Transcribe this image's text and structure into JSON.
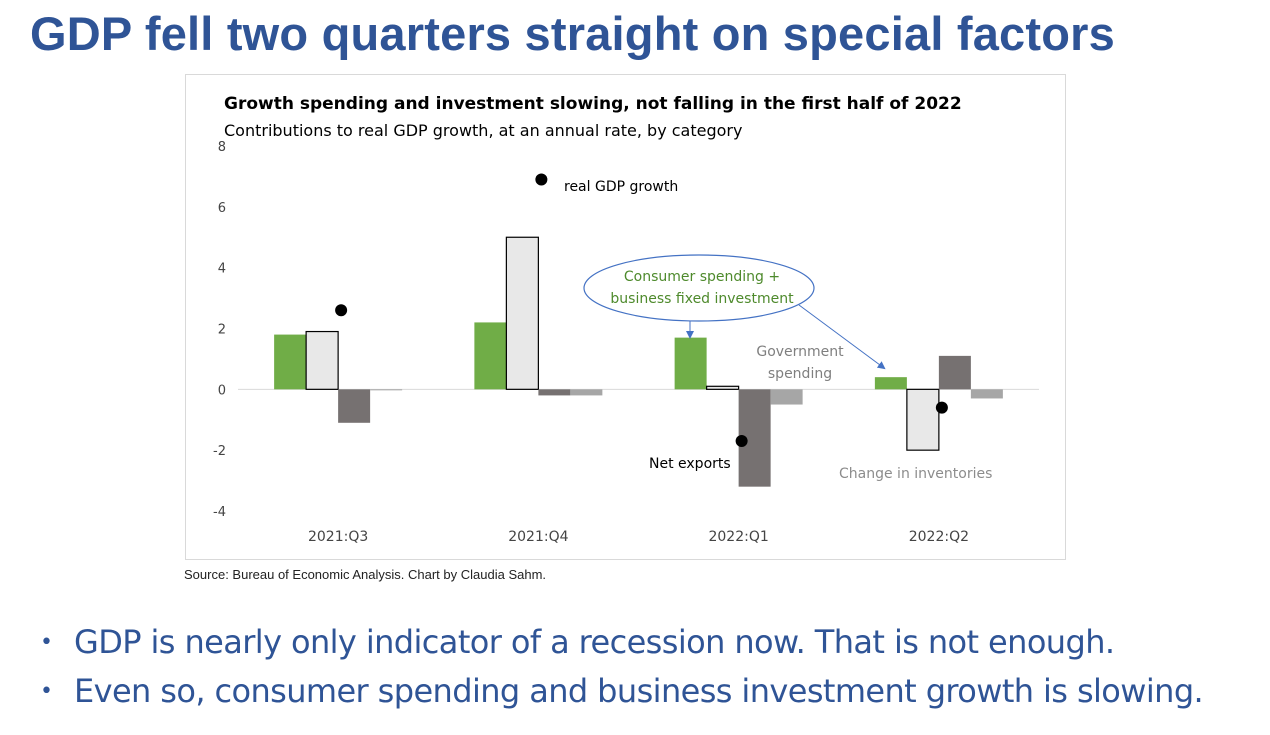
{
  "slide": {
    "title": "GDP fell two quarters straight on special factors",
    "source": "Source: Bureau of Economic Analysis. Chart by Claudia Sahm.",
    "bullets": [
      "GDP is nearly only indicator of a recession now. That is not enough.",
      "Even so, consumer spending and business investment growth is slowing."
    ],
    "bullet_glyph": "•"
  },
  "chart_data": {
    "type": "bar",
    "title": "Growth spending and investment slowing, not falling in the first half of 2022",
    "subtitle": "Contributions to real GDP growth, at an annual rate, by category",
    "categories": [
      "2021:Q3",
      "2021:Q4",
      "2022:Q1",
      "2022:Q2"
    ],
    "ylim": [
      -4,
      8
    ],
    "yticks": [
      -4,
      -2,
      0,
      2,
      4,
      6,
      8
    ],
    "grid": false,
    "series": [
      {
        "name": "Consumer spending + business fixed investment",
        "values": [
          1.8,
          2.2,
          1.7,
          0.4
        ],
        "color": "#70ad47"
      },
      {
        "name": "Change in inventories",
        "values": [
          1.9,
          5.0,
          0.1,
          -2.0
        ],
        "color": "#e8e8e8",
        "stroke": "#000000"
      },
      {
        "name": "Net exports",
        "values": [
          -1.1,
          -0.2,
          -3.2,
          1.1
        ],
        "color": "#767171"
      },
      {
        "name": "Government spending",
        "values": [
          0.0,
          -0.2,
          -0.5,
          -0.3
        ],
        "color": "#a6a6a6"
      }
    ],
    "real_gdp_growth": {
      "name": "real GDP growth",
      "values": [
        2.6,
        6.9,
        -1.7,
        -0.6
      ],
      "color": "#000000"
    },
    "annotations": {
      "real_gdp": "real GDP growth",
      "consumer_line1": "Consumer spending +",
      "consumer_line2": "business fixed investment",
      "government_line1": "Government",
      "government_line2": "spending",
      "net_exports": "Net exports",
      "inventories": "Change in inventories"
    },
    "colors": {
      "consumer_label": "#4e8a2c",
      "government_label": "#7f7f7f",
      "inventories_label": "#8c8c8c",
      "callout_border": "#4472c4"
    }
  }
}
